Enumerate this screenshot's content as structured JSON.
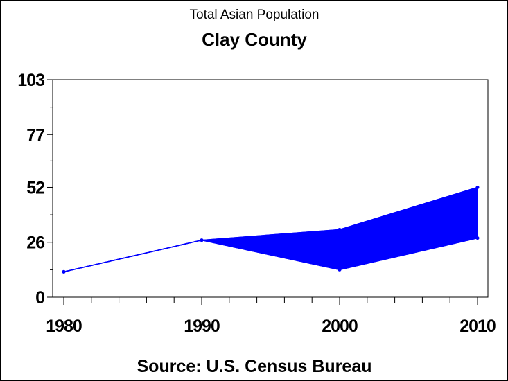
{
  "chart_data": {
    "type": "area",
    "title": "Total Asian Population",
    "subtitle": "Clay County",
    "footnote": "Source: U.S. Census Bureau",
    "xlabel": "",
    "ylabel": "",
    "x": [
      1980,
      1990,
      2000,
      2010
    ],
    "x_ticks": [
      "1980",
      "1990",
      "2000",
      "2010"
    ],
    "y_ticks": [
      "0",
      "26",
      "52",
      "77",
      "103"
    ],
    "ylim": [
      0,
      103
    ],
    "xlim": [
      1980,
      2010
    ],
    "series": [
      {
        "name": "upper",
        "values": [
          12,
          27,
          32,
          52
        ]
      },
      {
        "name": "lower",
        "values": [
          12,
          27,
          13,
          28
        ]
      }
    ],
    "color": "#0000ff",
    "grid": false
  }
}
